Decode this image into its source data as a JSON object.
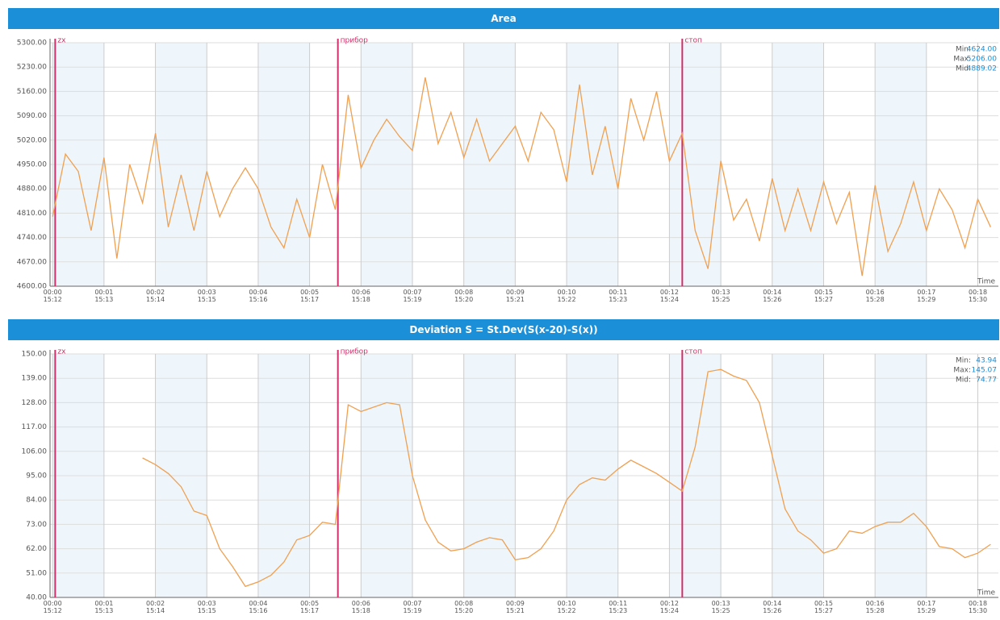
{
  "chart_data": [
    {
      "type": "line",
      "title": "Area",
      "xlabel": "Time",
      "x": [
        0,
        0.25,
        0.5,
        0.75,
        1,
        1.25,
        1.5,
        1.75,
        2,
        2.25,
        2.5,
        2.75,
        3,
        3.25,
        3.5,
        3.75,
        4,
        4.25,
        4.5,
        4.75,
        5,
        5.25,
        5.5,
        5.75,
        6,
        6.25,
        6.5,
        6.75,
        7,
        7.25,
        7.5,
        7.75,
        8,
        8.25,
        8.5,
        8.75,
        9,
        9.25,
        9.5,
        9.75,
        10,
        10.25,
        10.5,
        10.75,
        11,
        11.25,
        11.5,
        11.75,
        12,
        12.25,
        12.5,
        12.75,
        13,
        13.25,
        13.5,
        13.75,
        14,
        14.25,
        14.5,
        14.75,
        15,
        15.25,
        15.5,
        15.75,
        16,
        16.25,
        16.5,
        16.75,
        17,
        17.25,
        17.5,
        17.75,
        18,
        18.25
      ],
      "series": [
        {
          "color": "#f0a050",
          "values": [
            4800,
            4980,
            4930,
            4760,
            4970,
            4680,
            4950,
            4840,
            5040,
            4770,
            4920,
            4760,
            4930,
            4800,
            4880,
            4940,
            4880,
            4770,
            4710,
            4850,
            4740,
            4950,
            4820,
            5150,
            4940,
            5020,
            5080,
            5030,
            4990,
            5200,
            5010,
            5100,
            4970,
            5080,
            4960,
            5010,
            5060,
            4960,
            5100,
            5050,
            4900,
            5180,
            4920,
            5060,
            4880,
            5140,
            5020,
            5160,
            4960,
            5040,
            4760,
            4650,
            4960,
            4790,
            4850,
            4730,
            4910,
            4760,
            4880,
            4760,
            4900,
            4780,
            4870,
            4630,
            4890,
            4700,
            4780,
            4900,
            4760,
            4880,
            4820,
            4710,
            4850,
            4770
          ]
        }
      ],
      "xlim": [
        -0.05,
        18.4
      ],
      "xticks": [
        {
          "value": 0,
          "label": "00:00\n15:12"
        },
        {
          "value": 1,
          "label": "00:01\n15:13"
        },
        {
          "value": 2,
          "label": "00:02\n15:14"
        },
        {
          "value": 3,
          "label": "00:03\n15:15"
        },
        {
          "value": 4,
          "label": "00:04\n15:16"
        },
        {
          "value": 5,
          "label": "00:05\n15:17"
        },
        {
          "value": 6,
          "label": "00:06\n15:18"
        },
        {
          "value": 7,
          "label": "00:07\n15:19"
        },
        {
          "value": 8,
          "label": "00:08\n15:20"
        },
        {
          "value": 9,
          "label": "00:09\n15:21"
        },
        {
          "value": 10,
          "label": "00:10\n15:22"
        },
        {
          "value": 11,
          "label": "00:11\n15:23"
        },
        {
          "value": 12,
          "label": "00:12\n15:24"
        },
        {
          "value": 13,
          "label": "00:13\n15:25"
        },
        {
          "value": 14,
          "label": "00:14\n15:26"
        },
        {
          "value": 15,
          "label": "00:15\n15:27"
        },
        {
          "value": 16,
          "label": "00:16\n15:28"
        },
        {
          "value": 17,
          "label": "00:17\n15:29"
        },
        {
          "value": 18,
          "label": "00:18\n15:30"
        }
      ],
      "ylim": [
        4600,
        5300
      ],
      "yticks": [
        {
          "value": 4600,
          "label": "4600.00"
        },
        {
          "value": 4670,
          "label": "4670.00"
        },
        {
          "value": 4740,
          "label": "4740.00"
        },
        {
          "value": 4810,
          "label": "4810.00"
        },
        {
          "value": 4880,
          "label": "4880.00"
        },
        {
          "value": 4950,
          "label": "4950.00"
        },
        {
          "value": 5020,
          "label": "5020.00"
        },
        {
          "value": 5090,
          "label": "5090.00"
        },
        {
          "value": 5160,
          "label": "5160.00"
        },
        {
          "value": 5230,
          "label": "5230.00"
        },
        {
          "value": 5300,
          "label": "5300.00"
        }
      ],
      "grid": true,
      "markers": [
        {
          "x": 0.05,
          "label": "zx"
        },
        {
          "x": 5.55,
          "label": "прибор"
        },
        {
          "x": 12.25,
          "label": "стоп"
        }
      ],
      "stats": [
        {
          "label": "Min:",
          "value": "4624.00"
        },
        {
          "label": "Max:",
          "value": "5206.00"
        },
        {
          "label": "Mid:",
          "value": "4889.02"
        }
      ]
    },
    {
      "type": "line",
      "title": "Deviation S = St.Dev(S(x-20)-S(x))",
      "xlabel": "Time",
      "x": [
        0,
        0.25,
        0.5,
        0.75,
        1,
        1.25,
        1.5,
        1.75,
        2,
        2.25,
        2.5,
        2.75,
        3,
        3.25,
        3.5,
        3.75,
        4,
        4.25,
        4.5,
        4.75,
        5,
        5.25,
        5.5,
        5.75,
        6,
        6.25,
        6.5,
        6.75,
        7,
        7.25,
        7.5,
        7.75,
        8,
        8.25,
        8.5,
        8.75,
        9,
        9.25,
        9.5,
        9.75,
        10,
        10.25,
        10.5,
        10.75,
        11,
        11.25,
        11.5,
        11.75,
        12,
        12.25,
        12.5,
        12.75,
        13,
        13.25,
        13.5,
        13.75,
        14,
        14.25,
        14.5,
        14.75,
        15,
        15.25,
        15.5,
        15.75,
        16,
        16.25,
        16.5,
        16.75,
        17,
        17.25,
        17.5,
        17.75,
        18,
        18.25
      ],
      "series": [
        {
          "color": "#f0a050",
          "values": [
            null,
            null,
            null,
            null,
            null,
            null,
            null,
            103,
            100,
            96,
            90,
            79,
            77,
            62,
            54,
            45,
            47,
            50,
            56,
            66,
            68,
            74,
            73,
            127,
            124,
            126,
            128,
            127,
            95,
            75,
            65,
            61,
            62,
            65,
            67,
            66,
            57,
            58,
            62,
            70,
            84,
            91,
            94,
            93,
            98,
            102,
            99,
            96,
            92,
            88,
            108,
            142,
            143,
            140,
            138,
            128,
            104,
            80,
            70,
            66,
            60,
            62,
            70,
            69,
            72,
            74,
            74,
            78,
            72,
            63,
            62,
            58,
            60,
            64
          ]
        }
      ],
      "xlim": [
        -0.05,
        18.4
      ],
      "xticks": [
        {
          "value": 0,
          "label": "00:00\n15:12"
        },
        {
          "value": 1,
          "label": "00:01\n15:13"
        },
        {
          "value": 2,
          "label": "00:02\n15:14"
        },
        {
          "value": 3,
          "label": "00:03\n15:15"
        },
        {
          "value": 4,
          "label": "00:04\n15:16"
        },
        {
          "value": 5,
          "label": "00:05\n15:17"
        },
        {
          "value": 6,
          "label": "00:06\n15:18"
        },
        {
          "value": 7,
          "label": "00:07\n15:19"
        },
        {
          "value": 8,
          "label": "00:08\n15:20"
        },
        {
          "value": 9,
          "label": "00:09\n15:21"
        },
        {
          "value": 10,
          "label": "00:10\n15:22"
        },
        {
          "value": 11,
          "label": "00:11\n15:23"
        },
        {
          "value": 12,
          "label": "00:12\n15:24"
        },
        {
          "value": 13,
          "label": "00:13\n15:25"
        },
        {
          "value": 14,
          "label": "00:14\n15:26"
        },
        {
          "value": 15,
          "label": "00:15\n15:27"
        },
        {
          "value": 16,
          "label": "00:16\n15:28"
        },
        {
          "value": 17,
          "label": "00:17\n15:29"
        },
        {
          "value": 18,
          "label": "00:18\n15:30"
        }
      ],
      "ylim": [
        40,
        150
      ],
      "yticks": [
        {
          "value": 40,
          "label": "40.00"
        },
        {
          "value": 51,
          "label": "51.00"
        },
        {
          "value": 62,
          "label": "62.00"
        },
        {
          "value": 73,
          "label": "73.00"
        },
        {
          "value": 84,
          "label": "84.00"
        },
        {
          "value": 95,
          "label": "95.00"
        },
        {
          "value": 106,
          "label": "106.00"
        },
        {
          "value": 117,
          "label": "117.00"
        },
        {
          "value": 128,
          "label": "128.00"
        },
        {
          "value": 139,
          "label": "139.00"
        },
        {
          "value": 150,
          "label": "150.00"
        }
      ],
      "grid": true,
      "markers": [
        {
          "x": 0.05,
          "label": "zx"
        },
        {
          "x": 5.55,
          "label": "прибор"
        },
        {
          "x": 12.25,
          "label": "стоп"
        }
      ],
      "stats": [
        {
          "label": "Min:",
          "value": "43.94"
        },
        {
          "label": "Max:",
          "value": "145.07"
        },
        {
          "label": "Mid:",
          "value": "74.77"
        }
      ]
    }
  ]
}
